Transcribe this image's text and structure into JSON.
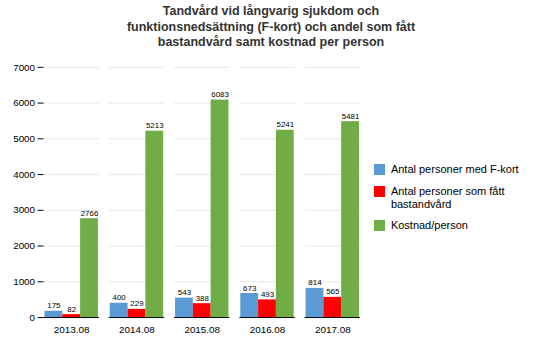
{
  "chart_data": {
    "type": "bar",
    "title": "Tandvård vid långvarig sjukdom och\nfunktionsnedsättning (F-kort) och andel som fått\nbastandvård samt kostnad per person",
    "categories": [
      "2013.08",
      "2014.08",
      "2015.08",
      "2016.08",
      "2017.08"
    ],
    "series": [
      {
        "name": "Antal personer med F-kort",
        "color": "#5B9BD5",
        "values": [
          175,
          400,
          543,
          673,
          814
        ]
      },
      {
        "name": "Antal personer som fått\nbastandvård",
        "color": "#FF0000",
        "values": [
          82,
          229,
          388,
          493,
          565
        ]
      },
      {
        "name": "Kostnad/person",
        "color": "#70AD47",
        "values": [
          2766,
          5213,
          6083,
          5241,
          5481
        ]
      }
    ],
    "ylim": [
      0,
      7000
    ],
    "yticks": [
      0,
      1000,
      2000,
      3000,
      4000,
      5000,
      6000,
      7000
    ],
    "grid": true,
    "data_labels": true,
    "legend": "right"
  }
}
